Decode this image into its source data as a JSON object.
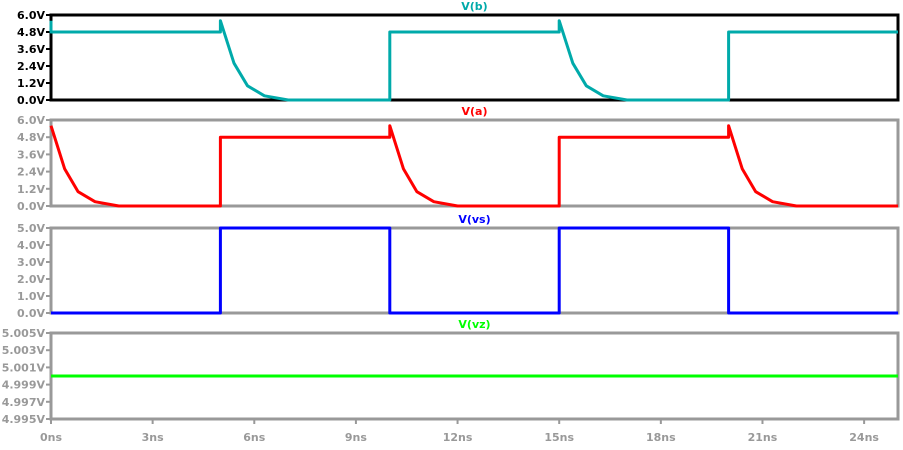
{
  "window": {
    "title": "Waveform viewer"
  },
  "axis": {
    "x_ticks": [
      "0ns",
      "3ns",
      "6ns",
      "9ns",
      "12ns",
      "15ns",
      "18ns",
      "21ns",
      "24ns"
    ],
    "x_tick_values": [
      0,
      3,
      6,
      9,
      12,
      15,
      18,
      21,
      24
    ],
    "x_range": [
      0,
      25
    ],
    "x_unit": "ns"
  },
  "colors": {
    "active_frame": "#000000",
    "frame": "#999999",
    "label_grey": "#999999",
    "vb": "#00AAAA",
    "va": "#FF0000",
    "vs": "#0000FF",
    "vz": "#00FF00"
  },
  "chart_data": [
    {
      "type": "line",
      "title": "V(b)",
      "active": true,
      "xlabel": "time",
      "ylabel": "V",
      "ylim": [
        0,
        6.0
      ],
      "y_ticks": [
        "6.0V",
        "4.8V",
        "3.6V",
        "2.4V",
        "1.2V",
        "0.0V"
      ],
      "y_tick_values": [
        6.0,
        4.8,
        3.6,
        2.4,
        1.2,
        0.0
      ],
      "series": [
        {
          "name": "V(b)",
          "color": "#00AAAA",
          "x": [
            0,
            0,
            5,
            5,
            5.4,
            5.8,
            6.3,
            7,
            10,
            10,
            15,
            15,
            15.4,
            15.8,
            16.3,
            17,
            20,
            20,
            25
          ],
          "values": [
            5.6,
            4.8,
            4.8,
            5.6,
            2.6,
            1.0,
            0.3,
            0.0,
            0.0,
            4.8,
            4.8,
            5.6,
            2.6,
            1.0,
            0.3,
            0.0,
            0.0,
            4.8,
            4.8
          ]
        }
      ]
    },
    {
      "type": "line",
      "title": "V(a)",
      "active": false,
      "xlabel": "time",
      "ylabel": "V",
      "ylim": [
        0,
        6.0
      ],
      "y_ticks": [
        "6.0V",
        "4.8V",
        "3.6V",
        "2.4V",
        "1.2V",
        "0.0V"
      ],
      "y_tick_values": [
        6.0,
        4.8,
        3.6,
        2.4,
        1.2,
        0.0
      ],
      "series": [
        {
          "name": "V(a)",
          "color": "#FF0000",
          "x": [
            0,
            0.4,
            0.8,
            1.3,
            2,
            5,
            5,
            10,
            10,
            10.4,
            10.8,
            11.3,
            12,
            15,
            15,
            20,
            20,
            20.4,
            20.8,
            21.3,
            22,
            25
          ],
          "values": [
            5.6,
            2.6,
            1.0,
            0.3,
            0.0,
            0.0,
            4.8,
            4.8,
            5.6,
            2.6,
            1.0,
            0.3,
            0.0,
            0.0,
            4.8,
            4.8,
            5.6,
            2.6,
            1.0,
            0.3,
            0.0,
            0.0
          ]
        }
      ]
    },
    {
      "type": "line",
      "title": "V(vs)",
      "active": false,
      "xlabel": "time",
      "ylabel": "V",
      "ylim": [
        0,
        5.0
      ],
      "y_ticks": [
        "5.0V",
        "4.0V",
        "3.0V",
        "2.0V",
        "1.0V",
        "0.0V"
      ],
      "y_tick_values": [
        5.0,
        4.0,
        3.0,
        2.0,
        1.0,
        0.0
      ],
      "series": [
        {
          "name": "V(vs)",
          "color": "#0000FF",
          "x": [
            0,
            5,
            5,
            10,
            10,
            15,
            15,
            20,
            20,
            25
          ],
          "values": [
            0,
            0,
            5,
            5,
            0,
            0,
            5,
            5,
            0,
            0
          ]
        }
      ]
    },
    {
      "type": "line",
      "title": "V(vz)",
      "active": false,
      "xlabel": "time",
      "ylabel": "V",
      "ylim": [
        4.995,
        5.005
      ],
      "y_ticks": [
        "5.005V",
        "5.003V",
        "5.001V",
        "4.999V",
        "4.997V",
        "4.995V"
      ],
      "y_tick_values": [
        5.005,
        5.003,
        5.001,
        4.999,
        4.997,
        4.995
      ],
      "series": [
        {
          "name": "V(vz)",
          "color": "#00FF00",
          "x": [
            0,
            25
          ],
          "values": [
            5.0,
            5.0
          ]
        }
      ]
    }
  ]
}
